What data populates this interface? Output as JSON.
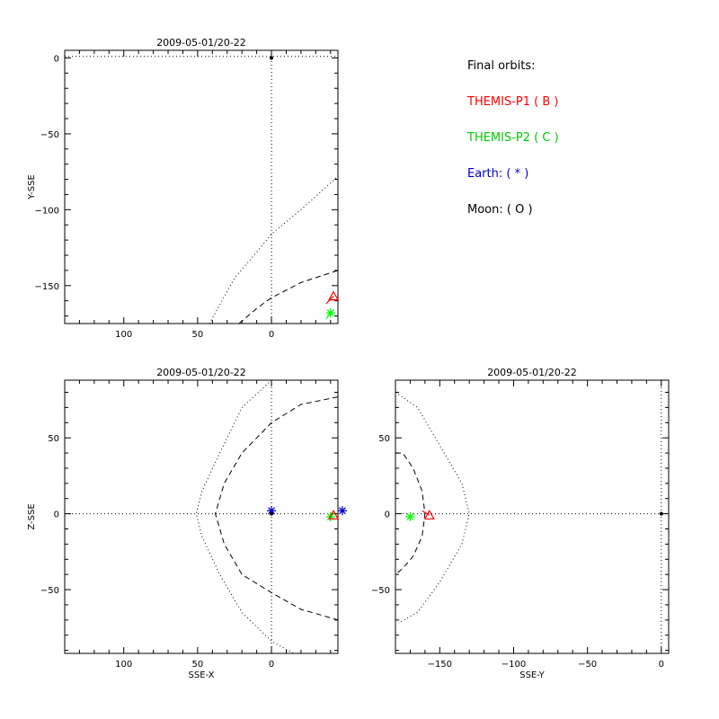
{
  "legend": {
    "title": "Final orbits:",
    "entries": [
      {
        "text": "THEMIS-P1 ( B )",
        "color": "#ff0000"
      },
      {
        "text": "THEMIS-P2 ( C )",
        "color": "#00ff00"
      },
      {
        "text": "Earth: ( * )",
        "color": "#0000cc"
      },
      {
        "text": "Moon: ( O )",
        "color": "#000000"
      }
    ]
  },
  "chart_data": [
    {
      "type": "line",
      "id": "xy",
      "title": "2009-05-01/20-22",
      "xlabel": "",
      "ylabel": "Y-SSE",
      "xlim": [
        140,
        -45
      ],
      "ylim": [
        -175,
        5
      ],
      "xticks": [
        100,
        50,
        0
      ],
      "yticks": [
        -150,
        -100,
        -50,
        0
      ],
      "ytick_labels": [
        "-150",
        "-100",
        "-50",
        "0"
      ],
      "series": [
        {
          "style": "dashed",
          "points": [
            [
              22,
              -175
            ],
            [
              10,
              -165
            ],
            [
              0,
              -158
            ],
            [
              -20,
              -148
            ],
            [
              -45,
              -140
            ]
          ]
        },
        {
          "style": "dotted",
          "points": [
            [
              42,
              -175
            ],
            [
              25,
              -145
            ],
            [
              10,
              -128
            ],
            [
              0,
              -116
            ],
            [
              -20,
              -100
            ],
            [
              -45,
              -78
            ]
          ]
        },
        {
          "style": "dotted",
          "points": [
            [
              0,
              5
            ],
            [
              0,
              -175
            ]
          ]
        },
        {
          "style": "dotted",
          "points": [
            [
              140,
              1
            ],
            [
              -45,
              1
            ]
          ]
        }
      ],
      "markers": [
        {
          "kind": "asterisk",
          "color": "#00ff00",
          "x": -40,
          "y": -168
        },
        {
          "kind": "triangle",
          "color": "#ff0000",
          "x": -42,
          "y": -157
        },
        {
          "kind": "dot",
          "color": "#000000",
          "x": 0,
          "y": 0
        }
      ],
      "traces": [
        {
          "color": "#00ff00",
          "points": [
            [
              -37,
              -172
            ],
            [
              -40,
              -168
            ]
          ]
        },
        {
          "color": "#ff0000",
          "points": [
            [
              -37,
              -162
            ],
            [
              -42,
              -157
            ]
          ]
        }
      ]
    },
    {
      "type": "line",
      "id": "xz",
      "title": "2009-05-01/20-22",
      "xlabel": "SSE-X",
      "ylabel": "Z-SSE",
      "xlim": [
        140,
        -45
      ],
      "ylim": [
        -92,
        88
      ],
      "xticks": [
        100,
        50,
        0
      ],
      "yticks": [
        50,
        0,
        -50
      ],
      "series": [
        {
          "style": "dashed",
          "points": [
            [
              -45,
              77
            ],
            [
              -20,
              72
            ],
            [
              0,
              60
            ],
            [
              20,
              40
            ],
            [
              32,
              20
            ],
            [
              38,
              0
            ],
            [
              32,
              -20
            ],
            [
              20,
              -40
            ],
            [
              0,
              -52
            ],
            [
              -20,
              -63
            ],
            [
              -45,
              -70
            ]
          ]
        },
        {
          "style": "dotted",
          "points": [
            [
              0,
              88
            ],
            [
              20,
              70
            ],
            [
              35,
              40
            ],
            [
              47,
              15
            ],
            [
              51,
              0
            ],
            [
              47,
              -15
            ],
            [
              35,
              -40
            ],
            [
              20,
              -65
            ],
            [
              0,
              -84
            ],
            [
              -15,
              -92
            ]
          ]
        },
        {
          "style": "dotted",
          "points": [
            [
              0,
              88
            ],
            [
              0,
              -92
            ]
          ]
        },
        {
          "style": "dotted",
          "points": [
            [
              140,
              0
            ],
            [
              -45,
              0
            ]
          ]
        }
      ],
      "markers": [
        {
          "kind": "asterisk",
          "color": "#0000cc",
          "x": 0,
          "y": 2
        },
        {
          "kind": "asterisk",
          "color": "#0000cc",
          "x": -48,
          "y": 2
        },
        {
          "kind": "asterisk",
          "color": "#00ff00",
          "x": -40,
          "y": -2
        },
        {
          "kind": "triangle",
          "color": "#ff0000",
          "x": -42,
          "y": -1
        },
        {
          "kind": "dot",
          "color": "#000000",
          "x": 0,
          "y": 0
        }
      ],
      "traces": []
    },
    {
      "type": "line",
      "id": "yz",
      "title": "2009-05-01/20-22",
      "xlabel": "SSE-Y",
      "ylabel": "",
      "xlim": [
        -180,
        5
      ],
      "ylim": [
        -92,
        88
      ],
      "xticks": [
        -150,
        -100,
        -50,
        0
      ],
      "yticks": [
        50,
        0,
        -50
      ],
      "series": [
        {
          "style": "dashed",
          "points": [
            [
              -180,
              40
            ],
            [
              -175,
              40
            ],
            [
              -168,
              30
            ],
            [
              -162,
              15
            ],
            [
              -160,
              0
            ],
            [
              -162,
              -15
            ],
            [
              -168,
              -28
            ],
            [
              -175,
              -36
            ],
            [
              -180,
              -40
            ]
          ]
        },
        {
          "style": "dotted",
          "points": [
            [
              -180,
              80
            ],
            [
              -165,
              70
            ],
            [
              -150,
              45
            ],
            [
              -135,
              20
            ],
            [
              -130,
              0
            ],
            [
              -135,
              -20
            ],
            [
              -150,
              -45
            ],
            [
              -165,
              -65
            ],
            [
              -178,
              -72
            ]
          ]
        },
        {
          "style": "dotted",
          "points": [
            [
              0,
              88
            ],
            [
              0,
              -92
            ]
          ]
        },
        {
          "style": "dotted",
          "points": [
            [
              -180,
              0
            ],
            [
              5,
              0
            ]
          ]
        }
      ],
      "markers": [
        {
          "kind": "asterisk",
          "color": "#00ff00",
          "x": -170,
          "y": -2
        },
        {
          "kind": "triangle",
          "color": "#ff0000",
          "x": -157,
          "y": -1
        },
        {
          "kind": "dot",
          "color": "#000000",
          "x": 0,
          "y": 0
        }
      ],
      "traces": [
        {
          "color": "#ff0000",
          "points": [
            [
              -162,
              2
            ],
            [
              -157,
              -1
            ]
          ]
        }
      ]
    }
  ]
}
